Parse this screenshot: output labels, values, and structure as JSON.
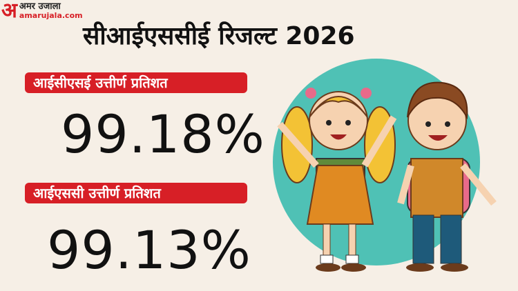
{
  "logo": {
    "mark": "अ",
    "hindi": "अमर उजाला",
    "english": "amarujala.com"
  },
  "title": "सीआईएससीई रिजल्ट 2026",
  "results": [
    {
      "label": "आईसीएसई उत्तीर्ण प्रतिशत",
      "value": "99.18%"
    },
    {
      "label": "आईएससी उत्तीर्ण प्रतिशत",
      "value": "99.13%"
    }
  ],
  "colors": {
    "accent": "#d71f26",
    "background": "#f6efe6",
    "circle": "#4fc1b5"
  }
}
